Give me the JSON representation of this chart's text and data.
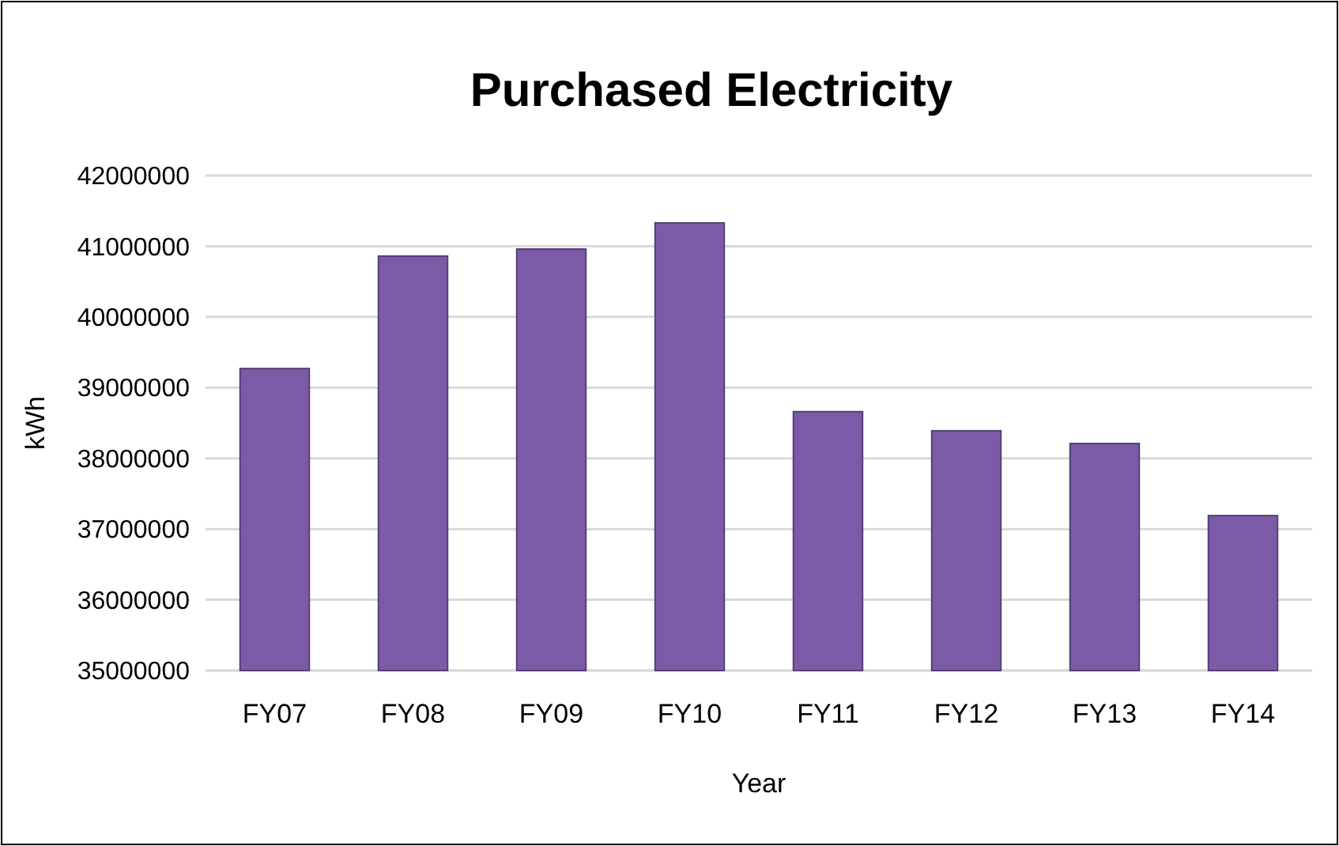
{
  "chart_data": {
    "type": "bar",
    "title": "Purchased Electricity",
    "xlabel": "Year",
    "ylabel": "kWh",
    "categories": [
      "FY07",
      "FY08",
      "FY09",
      "FY10",
      "FY11",
      "FY12",
      "FY13",
      "FY14"
    ],
    "values": [
      39270000,
      40860000,
      40960000,
      41330000,
      38660000,
      38390000,
      38210000,
      37190000
    ],
    "color": "#7b5ba8",
    "ylim": [
      35000000,
      42000000
    ],
    "yticks": [
      35000000,
      36000000,
      37000000,
      38000000,
      39000000,
      40000000,
      41000000,
      42000000
    ],
    "grid": "y"
  }
}
